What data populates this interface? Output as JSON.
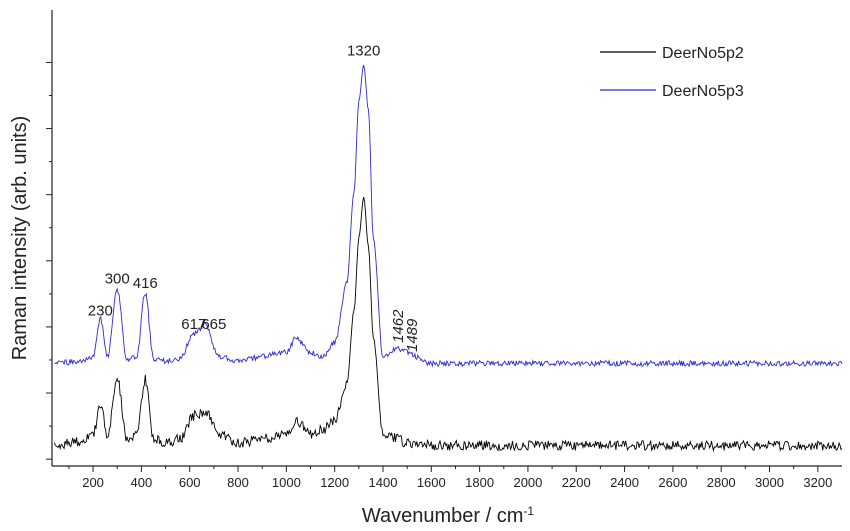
{
  "chart_data": {
    "type": "line",
    "xlabel": "Wavenumber / cm",
    "xlabel_superscript": "-1",
    "ylabel": "Raman intensity (arb. units)",
    "xlim": [
      30,
      3300
    ],
    "ylim": [
      0,
      1
    ],
    "x_ticks": [
      200,
      400,
      600,
      800,
      1000,
      1200,
      1400,
      1600,
      1800,
      2000,
      2200,
      2400,
      2600,
      2800,
      3000,
      3200
    ],
    "y_ticks_labeled": false,
    "legend_position": "top-right",
    "colors": {
      "DeerNo5p2": "#000000",
      "DeerNo5p3": "#2b2bd6"
    },
    "series": [
      {
        "name": "DeerNo5p2",
        "baseline": 0.045,
        "x": [
          40,
          150,
          200,
          230,
          260,
          300,
          340,
          380,
          416,
          450,
          500,
          560,
          617,
          665,
          720,
          800,
          900,
          1000,
          1040,
          1100,
          1150,
          1200,
          1250,
          1280,
          1300,
          1320,
          1340,
          1360,
          1400,
          1462,
          1489,
          1600,
          1800,
          2000,
          2200,
          2400,
          2600,
          2800,
          3000,
          3200,
          3300
        ],
        "y": [
          0.045,
          0.055,
          0.07,
          0.13,
          0.07,
          0.19,
          0.06,
          0.07,
          0.19,
          0.06,
          0.05,
          0.06,
          0.11,
          0.12,
          0.07,
          0.05,
          0.06,
          0.07,
          0.1,
          0.07,
          0.08,
          0.1,
          0.18,
          0.34,
          0.5,
          0.59,
          0.48,
          0.28,
          0.07,
          0.06,
          0.05,
          0.045,
          0.045,
          0.045,
          0.045,
          0.045,
          0.045,
          0.045,
          0.045,
          0.045,
          0.045
        ]
      },
      {
        "name": "DeerNo5p3",
        "baseline": 0.225,
        "x": [
          40,
          150,
          200,
          230,
          260,
          300,
          340,
          380,
          416,
          450,
          500,
          560,
          617,
          665,
          720,
          800,
          900,
          1000,
          1040,
          1100,
          1150,
          1200,
          1250,
          1280,
          1300,
          1320,
          1340,
          1360,
          1400,
          1462,
          1489,
          1600,
          1800,
          2000,
          2200,
          2400,
          2600,
          2800,
          3000,
          3200,
          3300
        ],
        "y": [
          0.225,
          0.23,
          0.24,
          0.325,
          0.24,
          0.385,
          0.235,
          0.24,
          0.38,
          0.235,
          0.23,
          0.235,
          0.29,
          0.31,
          0.24,
          0.23,
          0.24,
          0.25,
          0.28,
          0.25,
          0.24,
          0.27,
          0.4,
          0.6,
          0.8,
          0.88,
          0.78,
          0.5,
          0.24,
          0.26,
          0.25,
          0.225,
          0.225,
          0.225,
          0.225,
          0.225,
          0.225,
          0.225,
          0.225,
          0.225,
          0.225
        ]
      }
    ],
    "annotations": [
      {
        "text": "230",
        "x": 230,
        "y": 0.33,
        "italic": false,
        "rotate": false
      },
      {
        "text": "300",
        "x": 300,
        "y": 0.4,
        "italic": false,
        "rotate": false
      },
      {
        "text": "416",
        "x": 416,
        "y": 0.39,
        "italic": false,
        "rotate": false
      },
      {
        "text": "617",
        "x": 617,
        "y": 0.3,
        "italic": false,
        "rotate": false
      },
      {
        "text": "665",
        "x": 700,
        "y": 0.3,
        "italic": false,
        "rotate": false
      },
      {
        "text": "1320",
        "x": 1320,
        "y": 0.9,
        "italic": false,
        "rotate": false
      },
      {
        "text": "1462",
        "x": 1462,
        "y": 0.27,
        "italic": true,
        "rotate": true
      },
      {
        "text": "1489",
        "x": 1520,
        "y": 0.25,
        "italic": true,
        "rotate": true
      }
    ]
  }
}
